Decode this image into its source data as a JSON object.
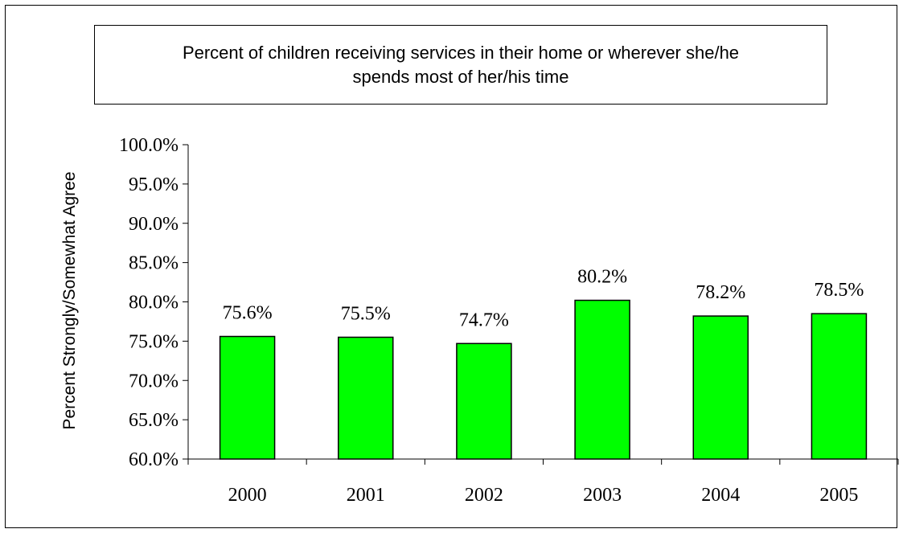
{
  "chart_data": {
    "type": "bar",
    "title": "Percent of children receiving services in their home or wherever she/he spends most of her/his time",
    "xlabel": "",
    "ylabel": "Percent Strongly/Somewhat Agree",
    "categories": [
      "2000",
      "2001",
      "2002",
      "2003",
      "2004",
      "2005"
    ],
    "values": [
      75.6,
      75.5,
      74.7,
      80.2,
      78.2,
      78.5
    ],
    "data_labels": [
      "75.6%",
      "75.5%",
      "74.7%",
      "80.2%",
      "78.2%",
      "78.5%"
    ],
    "ylim": [
      60,
      100
    ],
    "yticks": [
      60,
      65,
      70,
      75,
      80,
      85,
      90,
      95,
      100
    ],
    "ytick_labels": [
      "60.0%",
      "65.0%",
      "70.0%",
      "75.0%",
      "80.0%",
      "85.0%",
      "90.0%",
      "95.0%",
      "100.0%"
    ],
    "grid": false,
    "legend": "none",
    "bar_color": "#00ff00",
    "bar_edge_color": "#000000"
  }
}
